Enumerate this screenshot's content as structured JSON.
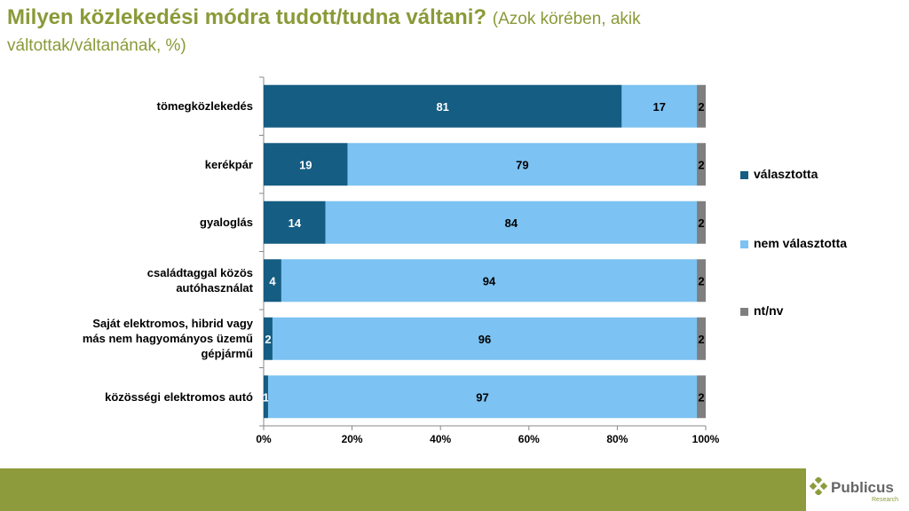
{
  "title": {
    "main": "Milyen közlekedési módra tudott/tudna váltani?",
    "sub": "(Azok körében, akik",
    "sub2": "váltottak/váltanának, %)"
  },
  "chart_data": {
    "type": "bar",
    "orientation": "horizontal",
    "stacked": "percent",
    "categories": [
      [
        "tömegközlekedés"
      ],
      [
        "kerékpár"
      ],
      [
        "gyaloglás"
      ],
      [
        "családtaggal közös",
        "autóhasználat"
      ],
      [
        "Saját elektromos, hibrid vagy",
        "más nem hagyományos üzemű",
        "gépjármű"
      ],
      [
        "közösségi elektromos autó"
      ]
    ],
    "series": [
      {
        "name": "választotta",
        "color": "#155d82",
        "values": [
          81,
          19,
          14,
          4,
          2,
          1
        ]
      },
      {
        "name": "nem választotta",
        "color": "#7cc2f2",
        "values": [
          17,
          79,
          84,
          94,
          96,
          97
        ]
      },
      {
        "name": "nt/nv",
        "color": "#7f7f7f",
        "values": [
          2,
          2,
          2,
          2,
          2,
          2
        ]
      }
    ],
    "xlim": [
      0,
      100
    ],
    "xticks": [
      "0%",
      "20%",
      "40%",
      "60%",
      "80%",
      "100%"
    ],
    "legend_position": "right"
  },
  "logo": {
    "name": "Publicus",
    "tagline": "Research"
  }
}
